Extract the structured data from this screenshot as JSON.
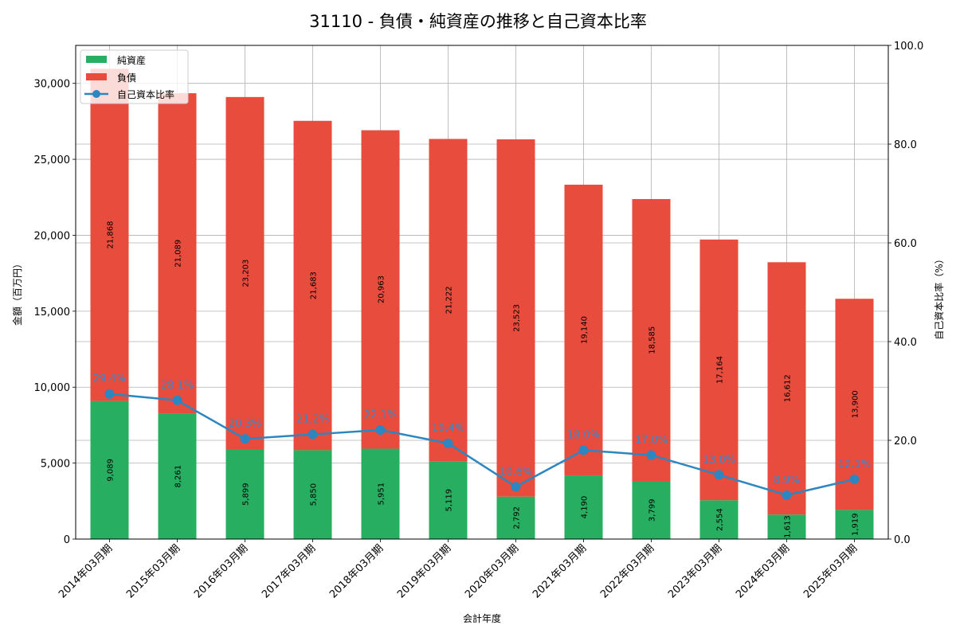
{
  "chart_data": {
    "type": "bar",
    "subtype": "stacked_bar_with_line_secondary_axis",
    "title": "31110 - 負債・純資産の推移と自己資本比率",
    "xlabel": "会計年度",
    "ylabel": "金額（百万円）",
    "y2label": "自己資本比率（%）",
    "ylim": [
      0,
      32500
    ],
    "y2lim": [
      0,
      100
    ],
    "yticks": [
      "0",
      "5,000",
      "10,000",
      "15,000",
      "20,000",
      "25,000",
      "30,000"
    ],
    "y2ticks": [
      "0.0",
      "20.0",
      "40.0",
      "60.0",
      "80.0",
      "100.0"
    ],
    "grid": true,
    "legend_position": "upper left",
    "categories": [
      "2014年03月期",
      "2015年03月期",
      "2016年03月期",
      "2017年03月期",
      "2018年03月期",
      "2019年03月期",
      "2020年03月期",
      "2021年03月期",
      "2022年03月期",
      "2023年03月期",
      "2024年03月期",
      "2025年03月期"
    ],
    "series": [
      {
        "name": "純資産",
        "type": "bar",
        "axis": "left",
        "color": "#27ae60",
        "values": [
          9089,
          8261,
          5899,
          5850,
          5951,
          5119,
          2792,
          4190,
          3799,
          2554,
          1613,
          1919
        ],
        "labels": [
          "9,089",
          "8,261",
          "5,899",
          "5,850",
          "5,951",
          "5,119",
          "2,792",
          "4,190",
          "3,799",
          "2,554",
          "1,613",
          "1,919"
        ]
      },
      {
        "name": "負債",
        "type": "bar",
        "axis": "left",
        "color": "#e74c3c",
        "values": [
          21868,
          21089,
          23203,
          21683,
          20963,
          21222,
          23523,
          19140,
          18585,
          17164,
          16612,
          13900
        ],
        "labels": [
          "21,868",
          "21,089",
          "23,203",
          "21,683",
          "20,963",
          "21,222",
          "23,523",
          "19,140",
          "18,585",
          "17,164",
          "16,612",
          "13,900"
        ]
      },
      {
        "name": "自己資本比率",
        "type": "line",
        "axis": "right",
        "color": "#2e86c1",
        "values": [
          29.4,
          28.1,
          20.3,
          21.2,
          22.1,
          19.4,
          10.6,
          18.0,
          17.0,
          13.0,
          8.9,
          12.1
        ],
        "labels": [
          "29.4%",
          "28.1%",
          "20.3%",
          "21.2%",
          "22.1%",
          "19.4%",
          "10.6%",
          "18.0%",
          "17.0%",
          "13.0%",
          "8.9%",
          "12.1%"
        ]
      }
    ]
  }
}
